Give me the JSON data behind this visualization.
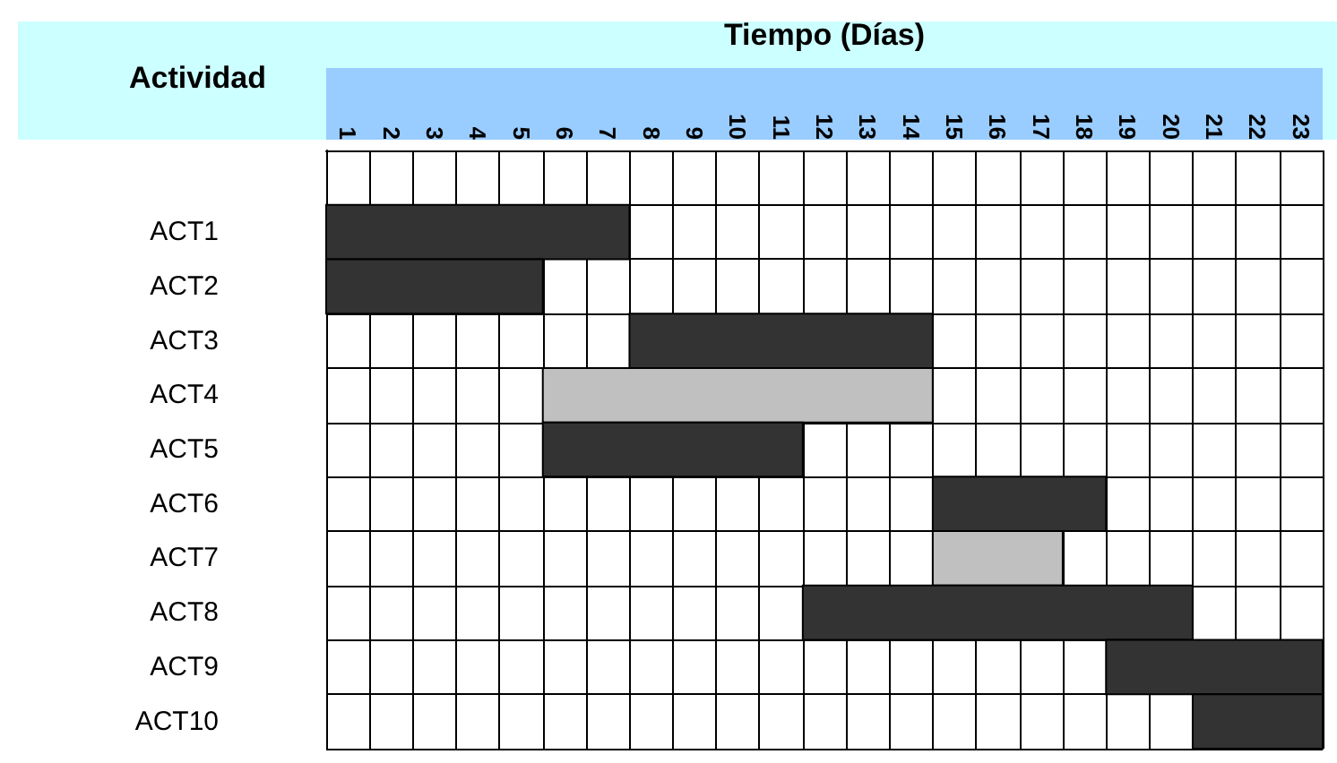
{
  "chart_data": {
    "type": "bar",
    "orientation": "horizontal",
    "xlabel": "Tiempo (Días)",
    "ylabel": "Actividad",
    "categories": [
      null,
      "ACT1",
      "ACT2",
      "ACT3",
      "ACT4",
      "ACT5",
      "ACT6",
      "ACT7",
      "ACT8",
      "ACT9",
      "ACT10"
    ],
    "values": [
      null,
      7,
      5,
      7,
      9,
      6,
      4,
      3,
      9,
      5,
      3
    ],
    "base": [
      null,
      0,
      0,
      7,
      5,
      5,
      14,
      14,
      11,
      18,
      20
    ],
    "colors": [
      null,
      "#333333",
      "#333333",
      "#333333",
      "#c0c0c0",
      "#333333",
      "#333333",
      "#c0c0c0",
      "#333333",
      "#333333",
      "#333333"
    ],
    "xlim": [
      0,
      23
    ],
    "xticks": [
      {
        "value": 0.5,
        "label": "1"
      },
      {
        "value": 1.5,
        "label": "2"
      },
      {
        "value": 2.5,
        "label": "3"
      },
      {
        "value": 3.5,
        "label": "4"
      },
      {
        "value": 4.5,
        "label": "5"
      },
      {
        "value": 5.5,
        "label": "6"
      },
      {
        "value": 6.5,
        "label": "7"
      },
      {
        "value": 7.5,
        "label": "8"
      },
      {
        "value": 8.5,
        "label": "9"
      },
      {
        "value": 9.5,
        "label": "10"
      },
      {
        "value": 10.5,
        "label": "11"
      },
      {
        "value": 11.5,
        "label": "12"
      },
      {
        "value": 12.5,
        "label": "13"
      },
      {
        "value": 13.5,
        "label": "14"
      },
      {
        "value": 14.5,
        "label": "15"
      },
      {
        "value": 15.5,
        "label": "16"
      },
      {
        "value": 16.5,
        "label": "17"
      },
      {
        "value": 17.5,
        "label": "18"
      },
      {
        "value": 18.5,
        "label": "19"
      },
      {
        "value": 19.5,
        "label": "20"
      },
      {
        "value": 20.5,
        "label": "21"
      },
      {
        "value": 21.5,
        "label": "22"
      },
      {
        "value": 22.5,
        "label": "23"
      }
    ],
    "grid": true
  }
}
